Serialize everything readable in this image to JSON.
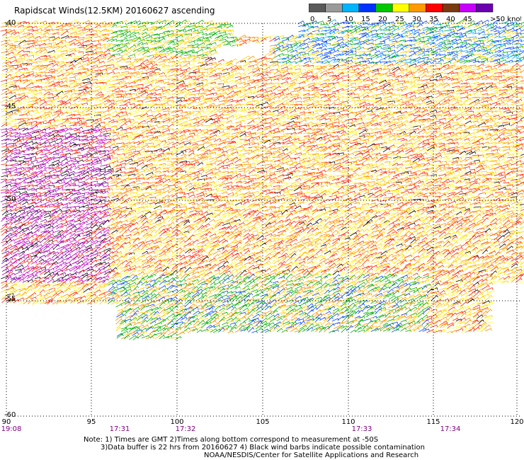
{
  "title": "Rapidscat Winds(12.5KM) 20160627 ascending",
  "legend": {
    "ticks": [
      "0",
      "5",
      "10",
      "15",
      "20",
      "25",
      "30",
      "35",
      "40",
      "45",
      ">50 knots"
    ],
    "colors": [
      "#5a5a5a",
      "#9a9a9a",
      "#00b4ff",
      "#0032ff",
      "#00c800",
      "#ffff00",
      "#ff9a00",
      "#ff0000",
      "#7a3a10",
      "#c800ff",
      "#6a00b0"
    ]
  },
  "axes": {
    "lat_labels": [
      "-40",
      "-45",
      "-50",
      "-55",
      "-60"
    ],
    "lon_labels": [
      "90",
      "95",
      "100",
      "105",
      "110",
      "115",
      "120"
    ],
    "time_labels": [
      "19:08",
      "17:31",
      "17:32",
      "17:33",
      "17:34"
    ]
  },
  "notes": [
    "Note: 1) Times are GMT 2)Times along bottom correspond to measurement at -50S",
    "3)Data buffer is 22 hrs from 20160627 4) Black wind barbs indicate possible contamination",
    "NOAA/NESDIS/Center for Satellite Applications and Research"
  ]
}
